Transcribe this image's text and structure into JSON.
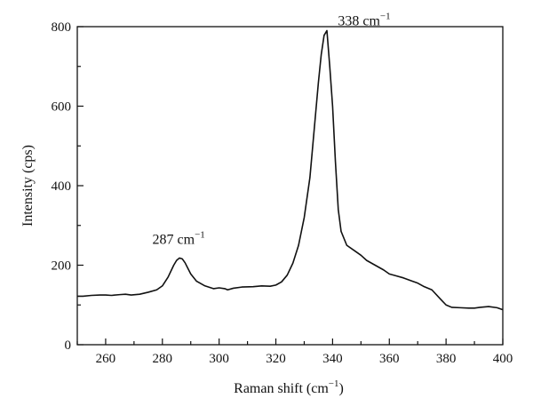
{
  "chart_data": {
    "type": "line",
    "xlabel": "Raman shift (cm",
    "xlabel_sup": "−1",
    "xlabel_tail": ")",
    "ylabel": "Intensity (cps)",
    "xlim": [
      250,
      400
    ],
    "ylim": [
      0,
      800
    ],
    "x_ticks": [
      260,
      280,
      300,
      320,
      340,
      360,
      380,
      400
    ],
    "y_ticks": [
      0,
      200,
      400,
      600,
      800
    ],
    "grid": false,
    "annotations": [
      {
        "text": "287 cm",
        "sup": "−1",
        "x": 287,
        "y": 218
      },
      {
        "text": "338 cm",
        "sup": "−1",
        "x": 338,
        "y": 790
      }
    ],
    "series": [
      {
        "x": [
          250,
          252,
          255,
          258,
          260,
          262,
          265,
          267,
          269,
          272,
          275,
          278,
          280,
          282,
          284,
          285,
          286,
          287,
          288,
          289,
          290,
          292,
          295,
          298,
          300,
          302,
          303,
          305,
          308,
          312,
          315,
          318,
          320,
          322,
          324,
          326,
          328,
          330,
          332,
          333,
          334,
          335,
          336,
          337,
          338,
          339,
          340,
          341,
          342,
          343,
          345,
          348,
          350,
          352,
          355,
          358,
          360,
          362,
          365,
          368,
          370,
          372,
          375,
          378,
          380,
          382,
          385,
          388,
          390,
          392,
          395,
          398,
          400
        ],
        "y": [
          122,
          122,
          124,
          125,
          125,
          124,
          126,
          127,
          125,
          127,
          132,
          138,
          148,
          170,
          200,
          212,
          218,
          216,
          206,
          192,
          178,
          160,
          148,
          141,
          143,
          141,
          138,
          142,
          145,
          146,
          148,
          147,
          150,
          158,
          175,
          205,
          250,
          320,
          420,
          500,
          580,
          660,
          730,
          778,
          790,
          700,
          600,
          460,
          340,
          285,
          250,
          235,
          225,
          212,
          200,
          188,
          178,
          174,
          168,
          160,
          155,
          147,
          138,
          115,
          100,
          94,
          93,
          92,
          92,
          94,
          96,
          93,
          88
        ]
      }
    ]
  }
}
